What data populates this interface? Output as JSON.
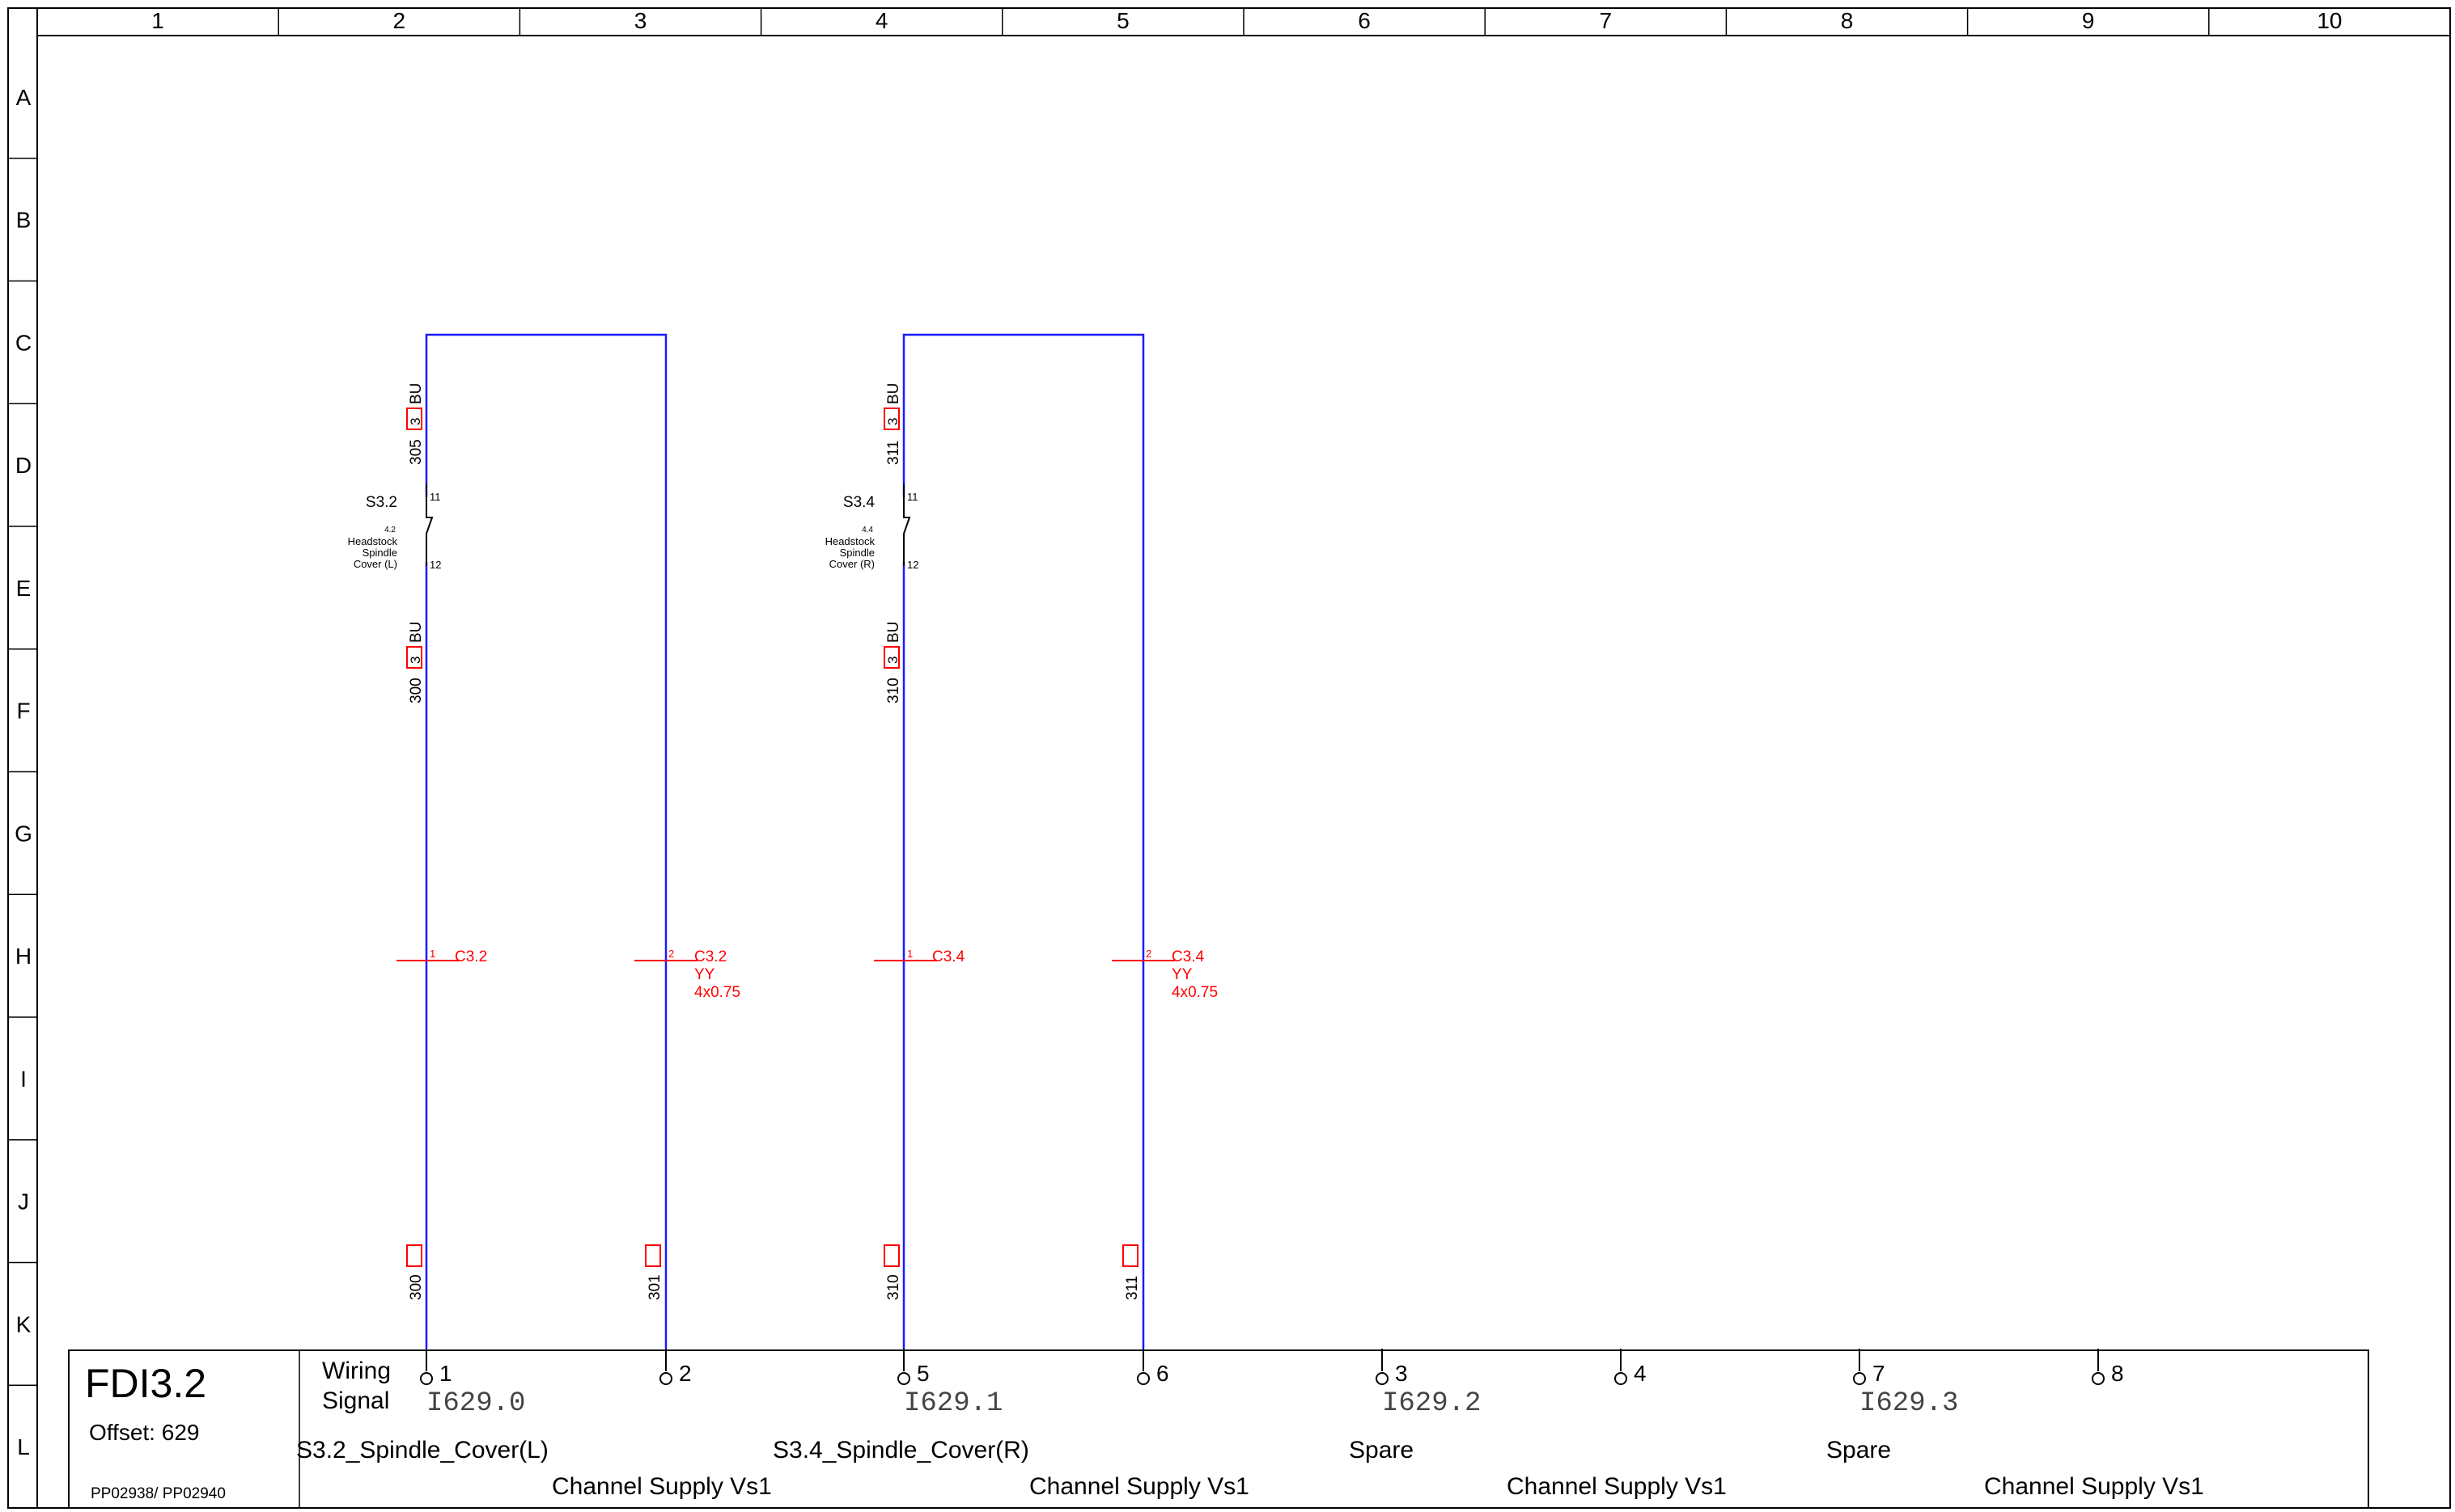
{
  "sheet": {
    "columns": [
      "1",
      "2",
      "3",
      "4",
      "5",
      "6",
      "7",
      "8",
      "9",
      "10"
    ],
    "rows": [
      "A",
      "B",
      "C",
      "D",
      "E",
      "F",
      "G",
      "H",
      "I",
      "J",
      "K",
      "L"
    ]
  },
  "colors": {
    "frame": "#000000",
    "wire": "#1a1aff",
    "mark": "#ff0000",
    "text": "#000000"
  },
  "circuits": [
    {
      "top_wire": "305",
      "top_wire_color": "BU",
      "top_terminal": "3",
      "switch_tag": "S3.2",
      "switch_ref": "4.2",
      "switch_desc": [
        "Headstock",
        "Spindle",
        "Cover (L)"
      ],
      "contact_in": "11",
      "contact_out": "12",
      "bottom_wire": "300",
      "bottom_wire_color": "BU",
      "bottom_terminal": "3",
      "cable_left_pin": "1",
      "cable_left_label": "C3.2",
      "cable_right_pin": "2",
      "cable_right_label": "C3.2",
      "cable_type": "YY",
      "cable_size": "4x0.75",
      "foot_left_wire": "300",
      "foot_right_wire": "301"
    },
    {
      "top_wire": "311",
      "top_wire_color": "BU",
      "top_terminal": "3",
      "switch_tag": "S3.4",
      "switch_ref": "4.4",
      "switch_desc": [
        "Headstock",
        "Spindle",
        "Cover (R)"
      ],
      "contact_in": "11",
      "contact_out": "12",
      "bottom_wire": "310",
      "bottom_wire_color": "BU",
      "bottom_terminal": "3",
      "cable_left_pin": "1",
      "cable_left_label": "C3.4",
      "cable_right_pin": "2",
      "cable_right_label": "C3.4",
      "cable_type": "YY",
      "cable_size": "4x0.75",
      "foot_left_wire": "310",
      "foot_right_wire": "311"
    }
  ],
  "title_block": {
    "module": "FDI3.2",
    "offset": "Offset: 629",
    "parts": "PP02938/ PP02940",
    "wiring_label": "Wiring",
    "signal_label": "Signal",
    "terminals": [
      "1",
      "2",
      "5",
      "6",
      "3",
      "4",
      "7",
      "8"
    ],
    "signals": [
      "I629.0",
      "I629.1",
      "I629.2",
      "I629.3"
    ],
    "descriptions": [
      "S3.2_Spindle_Cover(L)",
      "S3.4_Spindle_Cover(R)",
      "Spare",
      "Spare"
    ],
    "supplies": [
      "Channel Supply Vs1",
      "Channel Supply Vs1",
      "Channel Supply Vs1",
      "Channel Supply Vs1"
    ]
  }
}
